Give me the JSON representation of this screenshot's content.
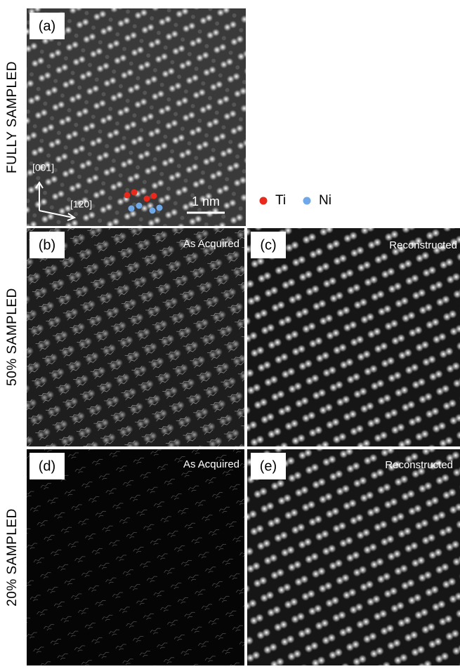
{
  "rows": [
    {
      "label": "FULLY SAMPLED"
    },
    {
      "label": "50% SAMPLED"
    },
    {
      "label": "20% SAMPLED"
    }
  ],
  "panels": [
    {
      "label": "(a)"
    },
    {
      "label": "(b)",
      "caption": "As Acquired"
    },
    {
      "label": "(c)",
      "caption": "Reconstructed"
    },
    {
      "label": "(d)",
      "caption": "As Acquired"
    },
    {
      "label": "(e)",
      "caption": "Reconstructed"
    }
  ],
  "annotations": {
    "axis_vertical": "[001]",
    "axis_horizontal": "[120]",
    "scale_bar": "1 nm"
  },
  "legend": [
    {
      "label": "Ti",
      "color": "#e8291c"
    },
    {
      "label": "Ni",
      "color": "#6fa8e8"
    }
  ]
}
